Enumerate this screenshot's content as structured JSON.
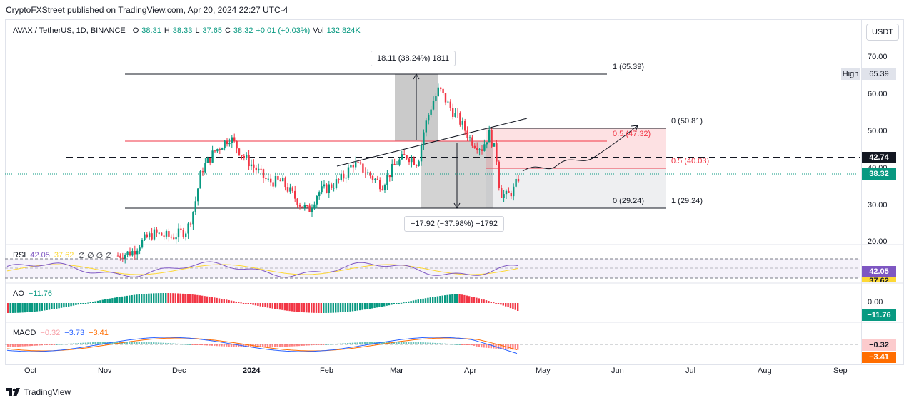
{
  "publisher": "CryptoFXStreet published on TradingView.com, Apr 20, 2024 22:27 UTC-4",
  "symbol": {
    "name": "AVAX / TetherUS, 1D, BINANCE",
    "o_label": "O",
    "o": "38.31",
    "h_label": "H",
    "h": "38.33",
    "l_label": "L",
    "l": "37.65",
    "c_label": "C",
    "c": "38.32",
    "change": "+0.01 (+0.03%)",
    "vol_label": "Vol",
    "vol": "132.824K"
  },
  "currency_button": "USDT",
  "price_axis": {
    "ticks": [
      "70.00",
      "60.00",
      "50.00",
      "40.00",
      "30.00",
      "20.00"
    ],
    "high_label": "High",
    "high_value": "65.39",
    "level_tag": "42.74",
    "current_tag": "38.32"
  },
  "fib_labels": {
    "top": "1 (65.39)",
    "r0": "0 (50.81)",
    "r05a": "0.5 (47.32)",
    "r05b": "0.5 (40.03)",
    "bottom0": "0 (29.24)",
    "bottom1": "1 (29.24)"
  },
  "measure": {
    "up": "18.11 (38.24%) 1811",
    "down": "−17.92 (−37.98%) −1792"
  },
  "rsi": {
    "name": "RSI",
    "v1": "42.05",
    "v2": "37.62",
    "zeros": "∅ ∅ ∅ ∅",
    "tag1": "42.05",
    "tag2": "37.62"
  },
  "ao": {
    "name": "AO",
    "value": "−11.76",
    "zero_tick": "0.00",
    "tag": "−11.76"
  },
  "macd": {
    "name": "MACD",
    "hist": "−0.32",
    "macd": "−3.73",
    "signal": "−3.41",
    "tag1": "−0.32",
    "tag2": "−3.41"
  },
  "time_axis": [
    "Oct",
    "Nov",
    "Dec",
    "2024",
    "Feb",
    "Mar",
    "Apr",
    "May",
    "Jun",
    "Jul",
    "Aug",
    "Sep"
  ],
  "footer": "TradingView",
  "colors": {
    "up": "#089981",
    "down": "#f23645",
    "rsi": "#7e57c2",
    "rsi_ma": "#fdd835",
    "macd": "#2962ff",
    "signal": "#ff6d00",
    "grid": "#f0f3fa"
  }
}
